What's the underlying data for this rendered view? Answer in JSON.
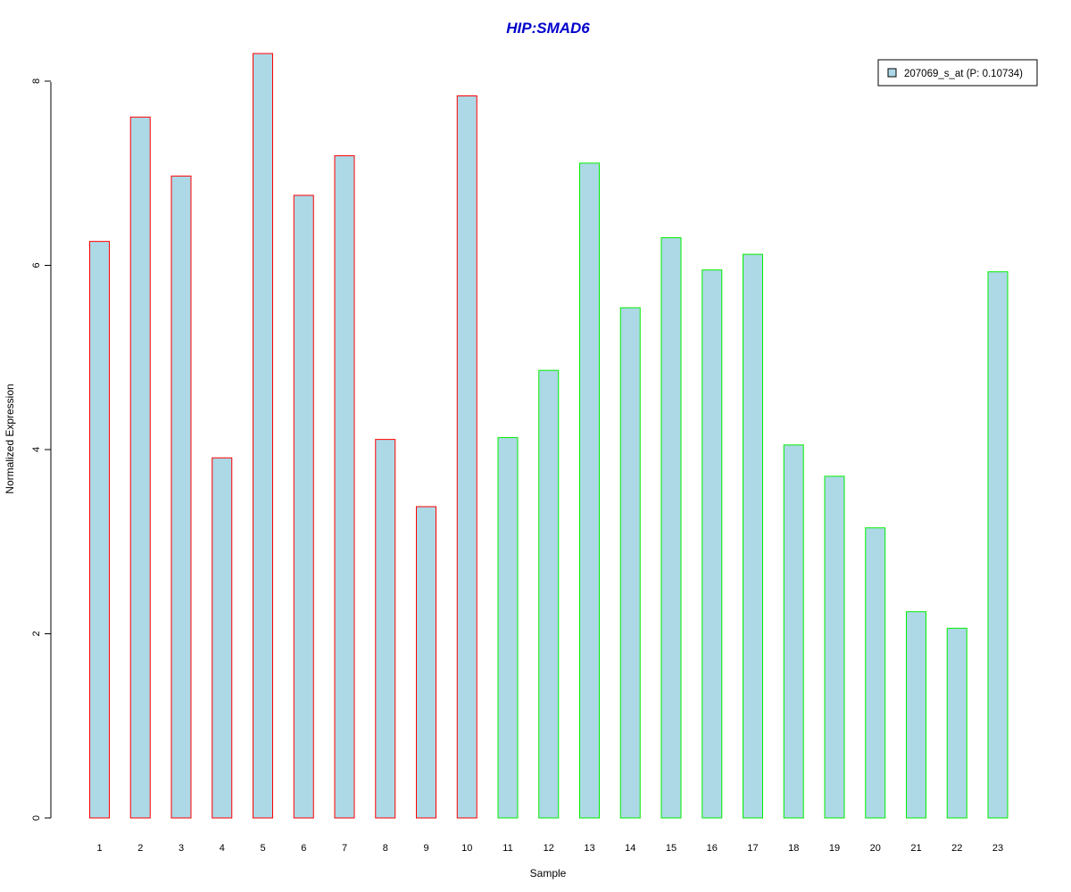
{
  "chart_data": {
    "type": "bar",
    "title": "HIP:SMAD6",
    "xlabel": "Sample",
    "ylabel": "Normalized Expression",
    "categories": [
      "1",
      "2",
      "3",
      "4",
      "5",
      "6",
      "7",
      "8",
      "9",
      "10",
      "11",
      "12",
      "13",
      "14",
      "15",
      "16",
      "17",
      "18",
      "19",
      "20",
      "21",
      "22",
      "23"
    ],
    "series": [
      {
        "name": "207069_s_at (P: 0.10734)",
        "values": [
          6.26,
          7.61,
          6.97,
          3.91,
          8.3,
          6.76,
          7.19,
          4.11,
          3.38,
          7.84,
          4.13,
          4.86,
          7.11,
          5.54,
          6.3,
          5.95,
          6.12,
          4.05,
          3.71,
          3.15,
          2.24,
          2.06,
          5.93
        ]
      }
    ],
    "groups": [
      {
        "samples": [
          "1",
          "2",
          "3",
          "4",
          "5",
          "6",
          "7",
          "8",
          "9",
          "10"
        ],
        "border_color": "#ff0000"
      },
      {
        "samples": [
          "11",
          "12",
          "13",
          "14",
          "15",
          "16",
          "17",
          "18",
          "19",
          "20",
          "21",
          "22",
          "23"
        ],
        "border_color": "#00ee00"
      }
    ],
    "y_ticks": [
      "0",
      "2",
      "4",
      "6",
      "8"
    ],
    "ylim": [
      0,
      8.3
    ],
    "grid": false,
    "legend_position": "top-right",
    "colors": {
      "bar_fill": "#add8e6",
      "title": "#0000cc",
      "text": "#000000"
    }
  }
}
